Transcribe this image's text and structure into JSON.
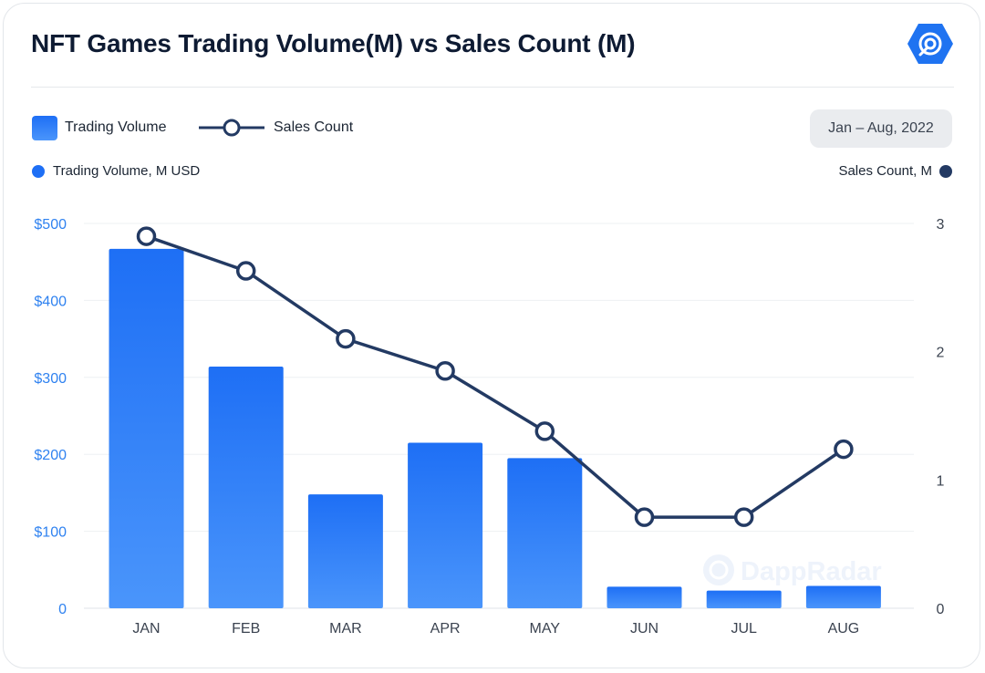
{
  "header": {
    "title": "NFT Games Trading Volume(M) vs Sales Count (M)",
    "logo_icon": "dappradar-logo-icon"
  },
  "legend": {
    "trading_volume": "Trading Volume",
    "sales_count": "Sales Count"
  },
  "date_range": "Jan – Aug, 2022",
  "axis_titles": {
    "left": "Trading Volume, M USD",
    "right": "Sales Count, M"
  },
  "watermark": "DappRadar",
  "colors": {
    "bar_top": "#1e6ff5",
    "bar_bottom": "#4a95fb",
    "line": "#233a63",
    "left_axis_text": "#2f82f0",
    "left_dot": "#1e6ff5",
    "right_dot": "#233a63"
  },
  "chart_data": {
    "type": "bar",
    "categories": [
      "JAN",
      "FEB",
      "MAR",
      "APR",
      "MAY",
      "JUN",
      "JUL",
      "AUG"
    ],
    "series": [
      {
        "name": "Trading Volume",
        "type": "bar",
        "axis": "left",
        "values": [
          467,
          314,
          148,
          215,
          195,
          28,
          23,
          29
        ]
      },
      {
        "name": "Sales Count",
        "type": "line",
        "axis": "right",
        "values": [
          2.9,
          2.63,
          2.1,
          1.85,
          1.38,
          0.71,
          0.71,
          1.24
        ]
      }
    ],
    "left_axis": {
      "min": 0,
      "max": 500,
      "ticks": [
        "0",
        "$100",
        "$200",
        "$300",
        "$400",
        "$500"
      ]
    },
    "right_axis": {
      "min": 0,
      "max": 3,
      "ticks": [
        "0",
        "1",
        "2",
        "3"
      ]
    },
    "ylabel_left": "Trading Volume, M USD",
    "ylabel_right": "Sales Count, M",
    "grid": true
  }
}
